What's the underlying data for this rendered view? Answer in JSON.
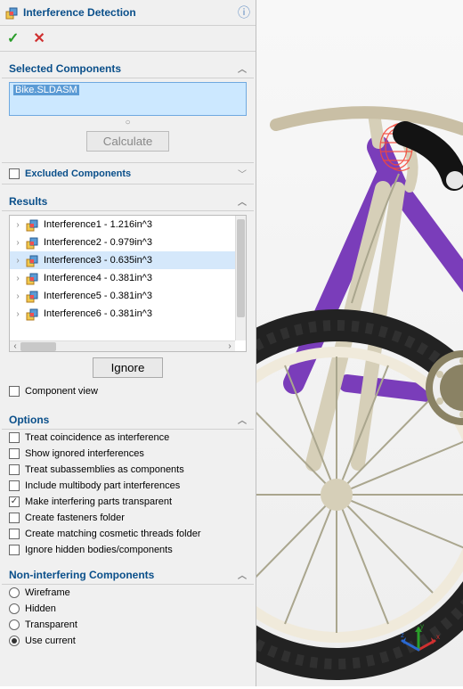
{
  "header": {
    "title": "Interference Detection",
    "icon_name": "interference-icon"
  },
  "confirm": {
    "ok_label": "OK",
    "cancel_label": "Cancel"
  },
  "selected_components": {
    "title": "Selected Components",
    "collapsed": false,
    "items": [
      "Bike.SLDASM"
    ],
    "calculate_label": "Calculate"
  },
  "excluded": {
    "title": "Excluded Components",
    "collapsed": true
  },
  "results": {
    "title": "Results",
    "collapsed": false,
    "items": [
      {
        "label": "Interference1 - 1.216in^3",
        "selected": false
      },
      {
        "label": "Interference2 - 0.979in^3",
        "selected": false
      },
      {
        "label": "Interference3 - 0.635in^3",
        "selected": true
      },
      {
        "label": "Interference4 - 0.381in^3",
        "selected": false
      },
      {
        "label": "Interference5 - 0.381in^3",
        "selected": false
      },
      {
        "label": "Interference6 - 0.381in^3",
        "selected": false
      }
    ],
    "ignore_label": "Ignore",
    "component_view_label": "Component view",
    "component_view_checked": false
  },
  "options": {
    "title": "Options",
    "collapsed": false,
    "items": [
      {
        "label": "Treat coincidence as interference",
        "checked": false
      },
      {
        "label": "Show ignored interferences",
        "checked": false
      },
      {
        "label": "Treat subassemblies as components",
        "checked": false
      },
      {
        "label": "Include multibody part interferences",
        "checked": false
      },
      {
        "label": "Make interfering parts transparent",
        "checked": true
      },
      {
        "label": "Create fasteners folder",
        "checked": false
      },
      {
        "label": "Create matching cosmetic threads folder",
        "checked": false
      },
      {
        "label": "Ignore hidden bodies/components",
        "checked": false
      }
    ]
  },
  "non_interfering": {
    "title": "Non-interfering Components",
    "collapsed": false,
    "options": [
      {
        "label": "Wireframe",
        "selected": false
      },
      {
        "label": "Hidden",
        "selected": false
      },
      {
        "label": "Transparent",
        "selected": false
      },
      {
        "label": "Use current",
        "selected": true
      }
    ]
  },
  "colors": {
    "accent": "#0a4f8a",
    "panel_bg": "#f0f0f0",
    "selection_bg": "#d5e8fb",
    "input_bg": "#cce8ff",
    "highlight": "#5b9bd5",
    "border": "#bfbfbf"
  },
  "viewport": {
    "type": "3d-cad-view",
    "model": "Bike assembly",
    "frame_color": "#7a3dba",
    "handlebar_color": "#c9bfa5",
    "metal_color": "#d6cfb8",
    "grip_color": "#131313",
    "grip_cap_color": "#e8e8e8",
    "brake_lever_color": "#d6cfb8",
    "interference_highlight_color": "#f5483a",
    "tire_color": "#222222",
    "tread_color": "#3a3a3a",
    "rim_color": "#f0eadb",
    "spoke_color": "#aaa68e",
    "hub_color": "#d6cfb8",
    "chainring_color": "#8a8264",
    "bolt_color": "#d0c9b0",
    "background_top": "#f8f8f8",
    "background_bottom": "#eeeeee",
    "gizmo": {
      "x_color": "#d03030",
      "y_color": "#2a9d2a",
      "z_color": "#2a68d0",
      "labels": [
        "x",
        "y",
        "z"
      ]
    }
  }
}
